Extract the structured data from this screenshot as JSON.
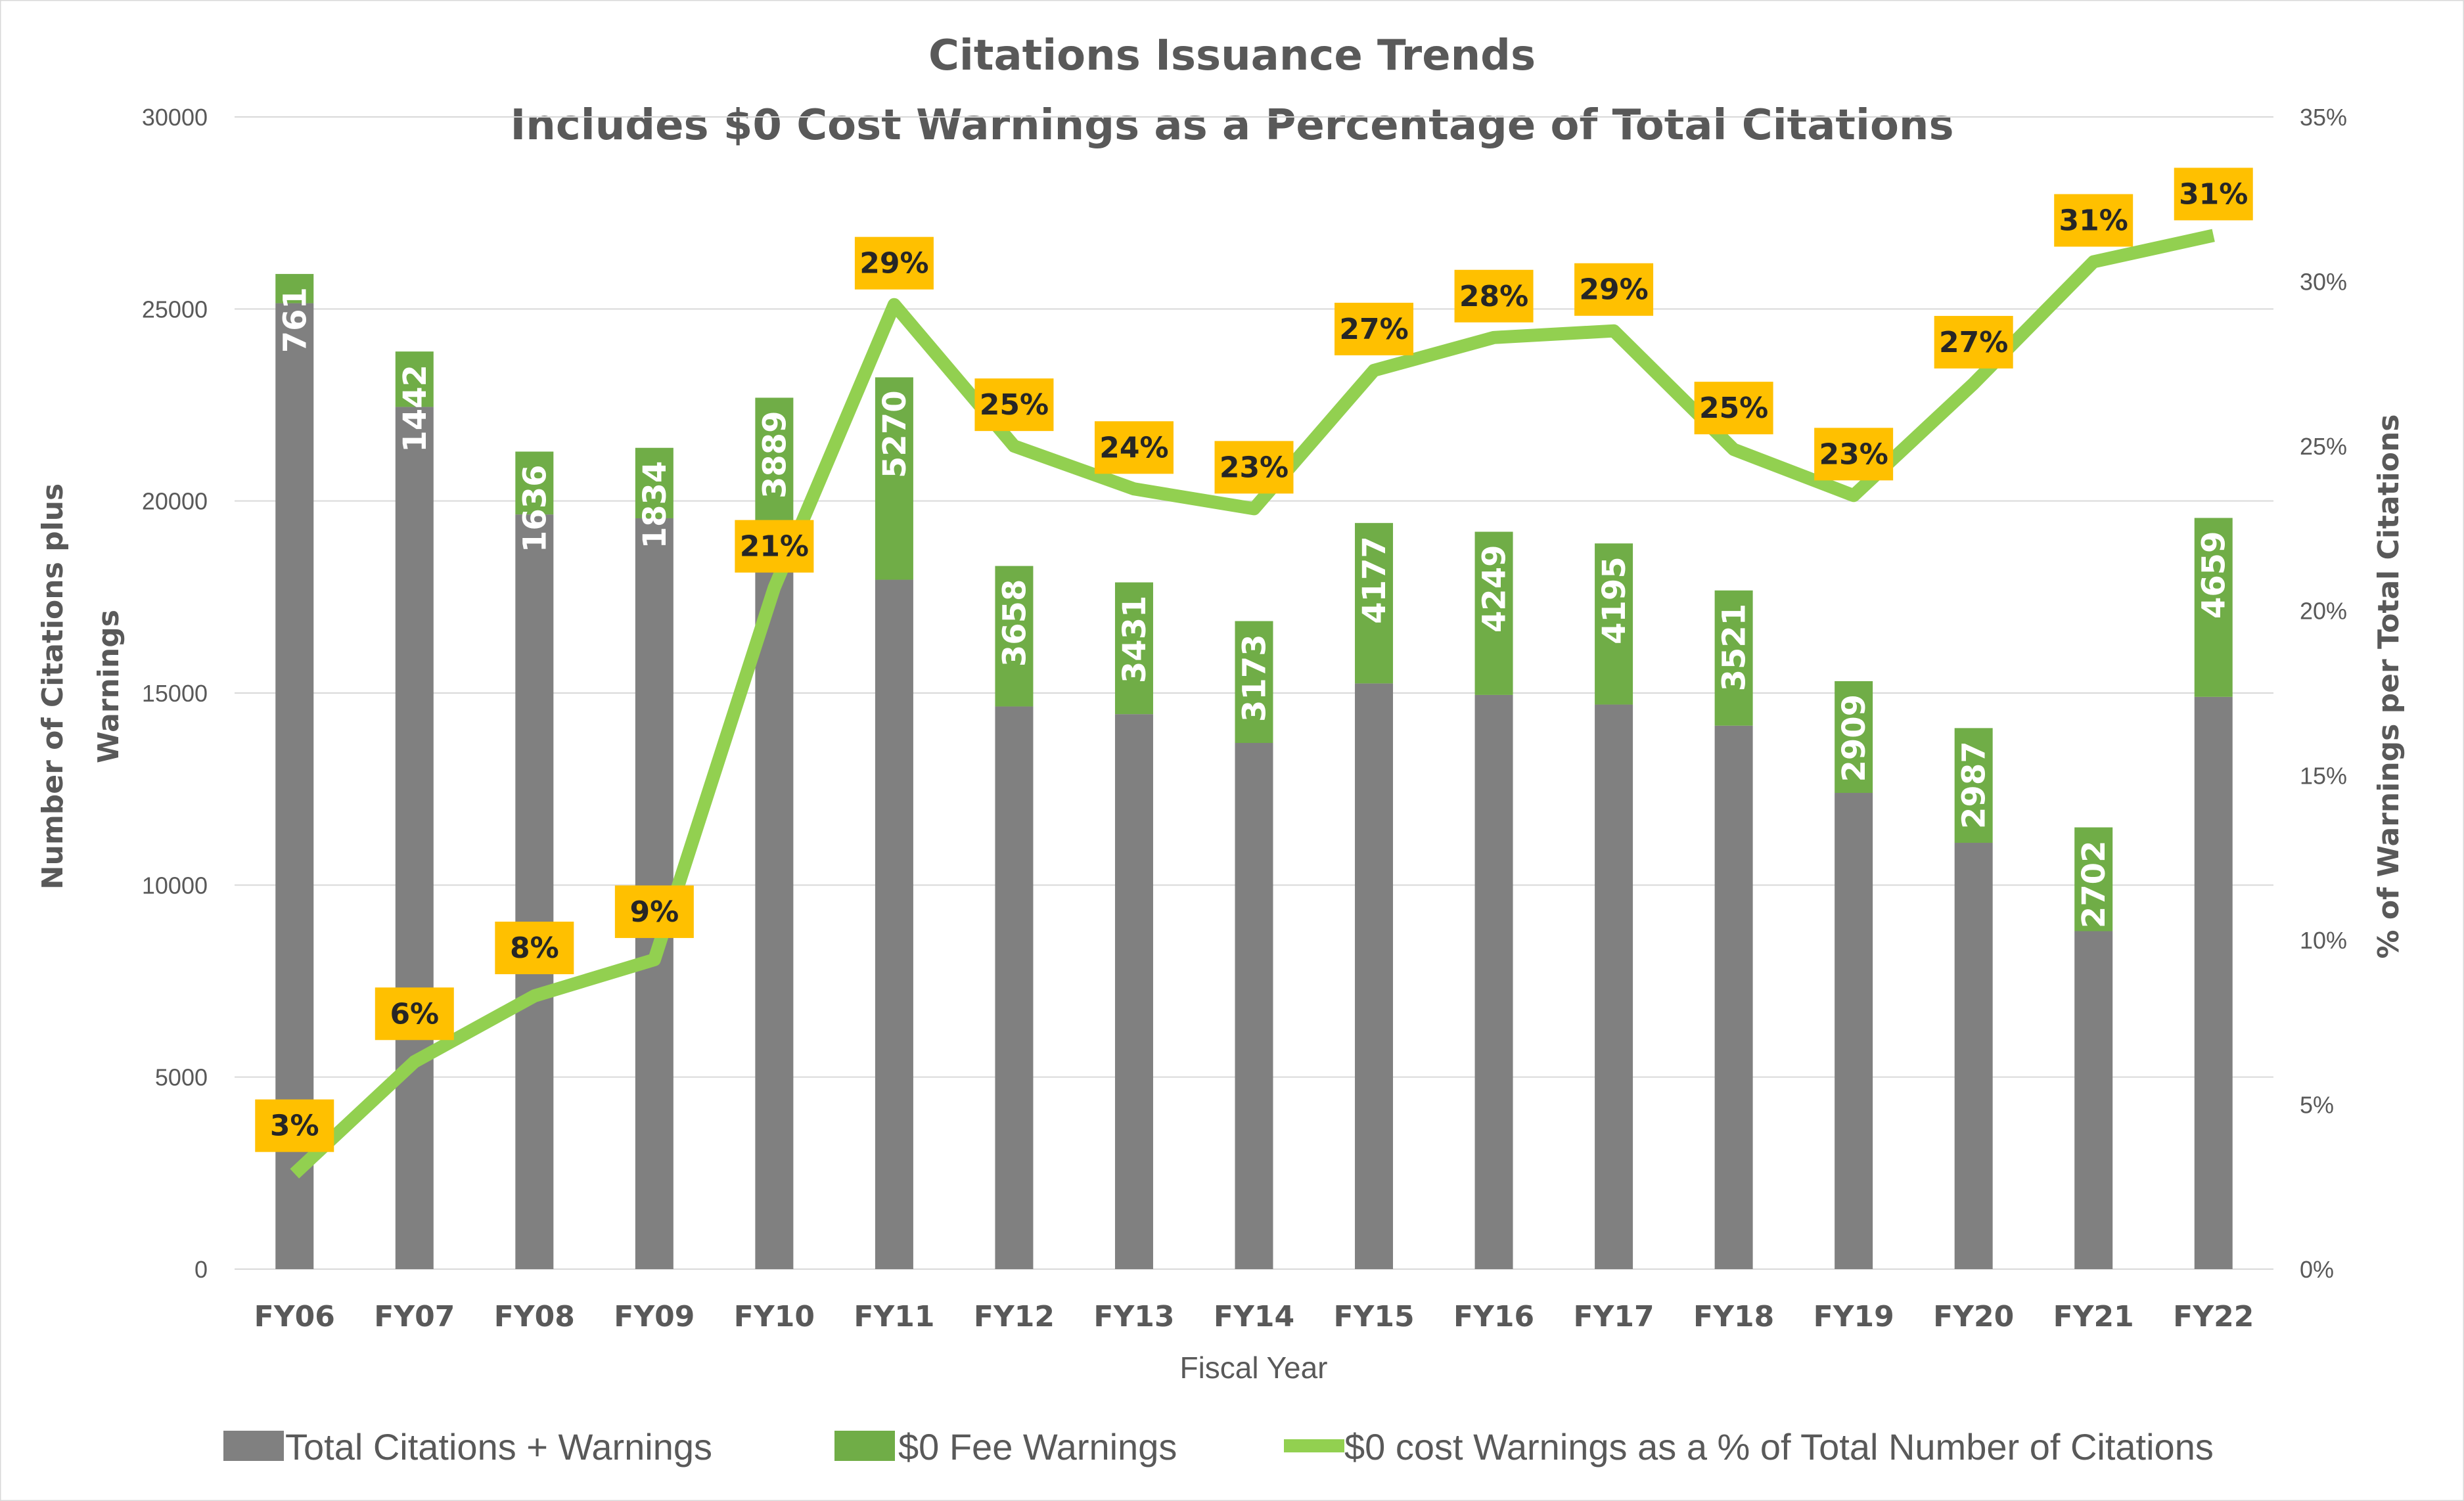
{
  "chart_data": {
    "type": "bar+line",
    "title": "Citations Issuance Trends",
    "subtitle": "Includes $0 Cost Warnings as a Percentage of Total Citations",
    "xlabel": "Fiscal Year",
    "ylabel": "Number of Citations plus Warnings",
    "y2label": "% of Warnings per Total Citations",
    "ylim": [
      0,
      30000
    ],
    "y2lim": [
      0,
      35
    ],
    "yticks": [
      "0",
      "5000",
      "10000",
      "15000",
      "20000",
      "25000",
      "30000"
    ],
    "y2ticks": [
      "0%",
      "5%",
      "10%",
      "15%",
      "20%",
      "25%",
      "30%",
      "35%"
    ],
    "grid": true,
    "legend_position": "bottom",
    "categories": [
      "FY06",
      "FY07",
      "FY08",
      "FY09",
      "FY10",
      "FY11",
      "FY12",
      "FY13",
      "FY14",
      "FY15",
      "FY16",
      "FY17",
      "FY18",
      "FY19",
      "FY20",
      "FY21",
      "FY22"
    ],
    "series": [
      {
        "name": "Total Citations + Warnings",
        "type": "stacked-bar",
        "color": "#808080",
        "values": [
          25150,
          22450,
          19650,
          19550,
          18800,
          17950,
          14650,
          14450,
          13700,
          15250,
          14950,
          14700,
          14150,
          12400,
          11100,
          8800,
          14900
        ]
      },
      {
        "name": "$0 Fee Warnings",
        "type": "stacked-bar",
        "color": "#70AD47",
        "values": [
          761,
          1442,
          1636,
          1834,
          3889,
          5270,
          3658,
          3431,
          3173,
          4177,
          4249,
          4195,
          3521,
          2909,
          2987,
          2702,
          4659
        ],
        "labels": [
          "761",
          "1442",
          "1636",
          "1834",
          "3889",
          "5270",
          "3658",
          "3431",
          "3173",
          "4177",
          "4249",
          "4195",
          "3521",
          "2909",
          "2987",
          "2702",
          "4659"
        ]
      },
      {
        "name": "$0 cost Warnings as a % of Total Number of Citations",
        "type": "line",
        "axis": "secondary",
        "color": "#92D050",
        "values": [
          2.9,
          6.3,
          8.3,
          9.4,
          20.7,
          29.3,
          25.0,
          23.7,
          23.1,
          27.3,
          28.3,
          28.5,
          24.9,
          23.5,
          26.9,
          30.6,
          31.4
        ],
        "labels": [
          "3%",
          "6%",
          "8%",
          "9%",
          "21%",
          "29%",
          "25%",
          "24%",
          "23%",
          "27%",
          "28%",
          "29%",
          "25%",
          "23%",
          "27%",
          "31%",
          "31%"
        ]
      }
    ],
    "label_color": "#FFC000"
  }
}
